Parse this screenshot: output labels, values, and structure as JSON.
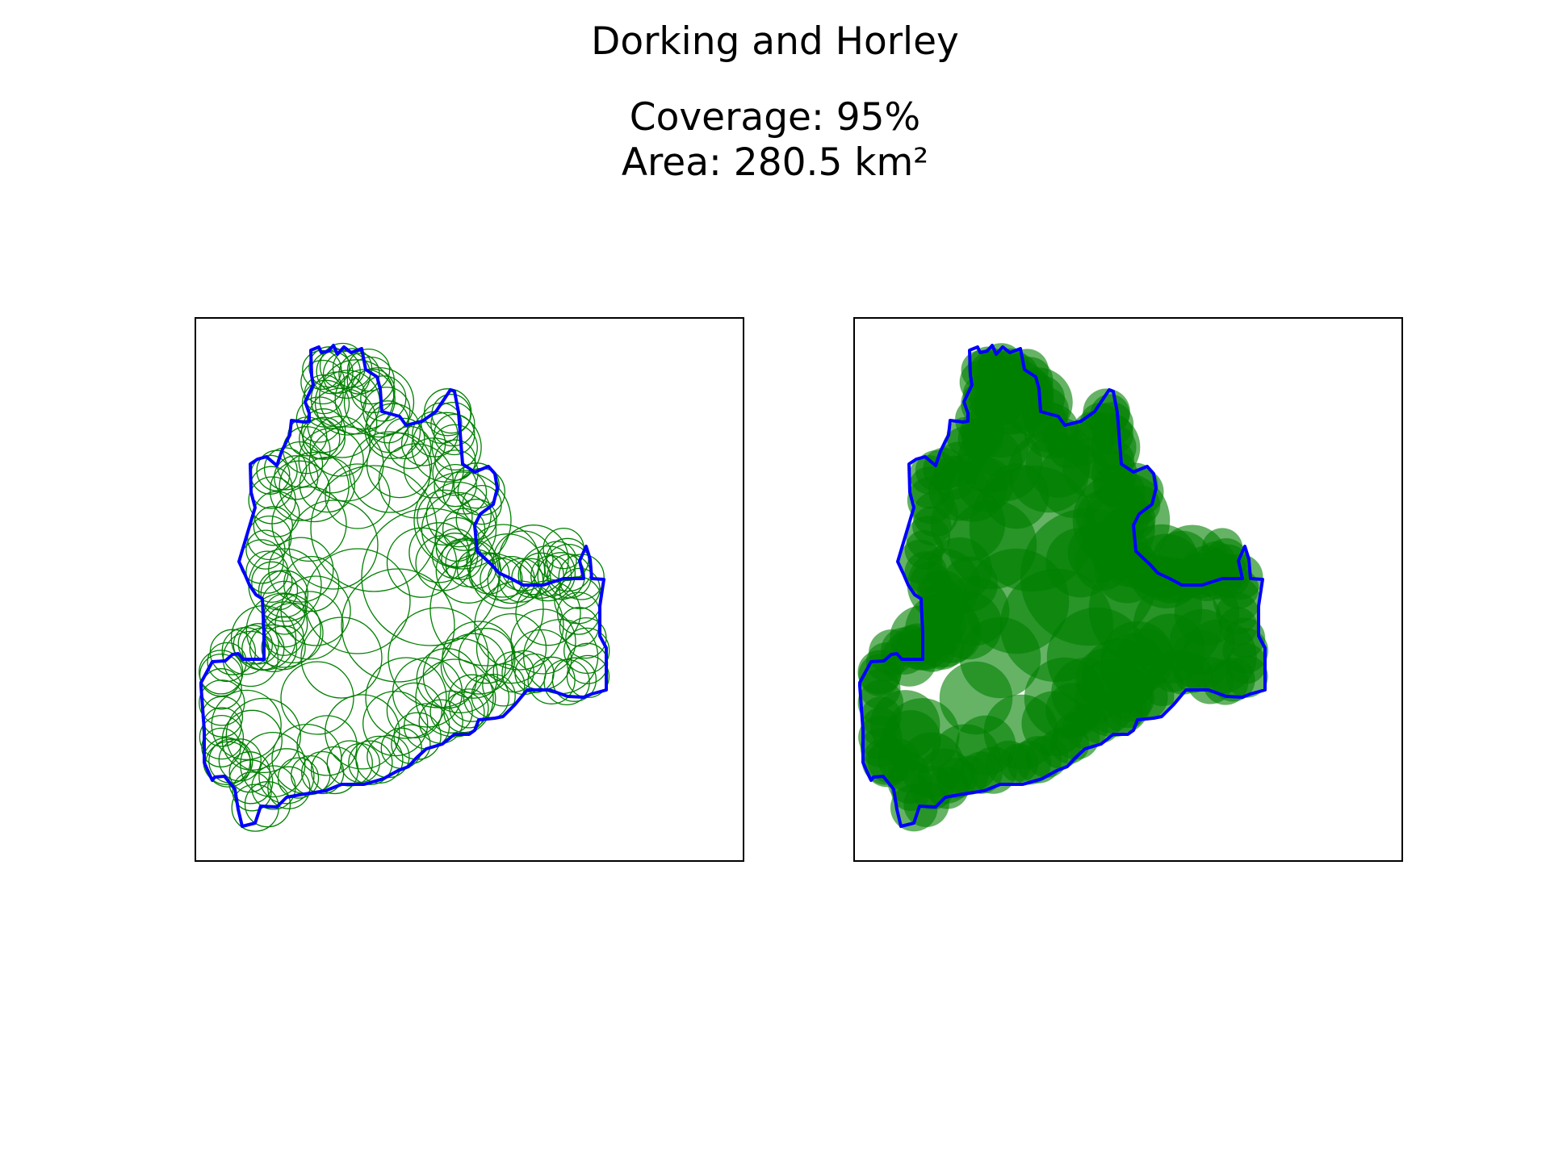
{
  "figure": {
    "title": "Dorking and Horley",
    "coverage_line": "Coverage: 95%",
    "area_line": "Area: 280.5 km²"
  },
  "style": {
    "boundary_color": "#0000ff",
    "circle_color": "#008000",
    "frame_color": "#000000",
    "background": "#ffffff"
  },
  "panels": [
    {
      "name": "outline-circles",
      "circle_fill": "none"
    },
    {
      "name": "filled-circles",
      "circle_fill": "#008000"
    }
  ]
}
